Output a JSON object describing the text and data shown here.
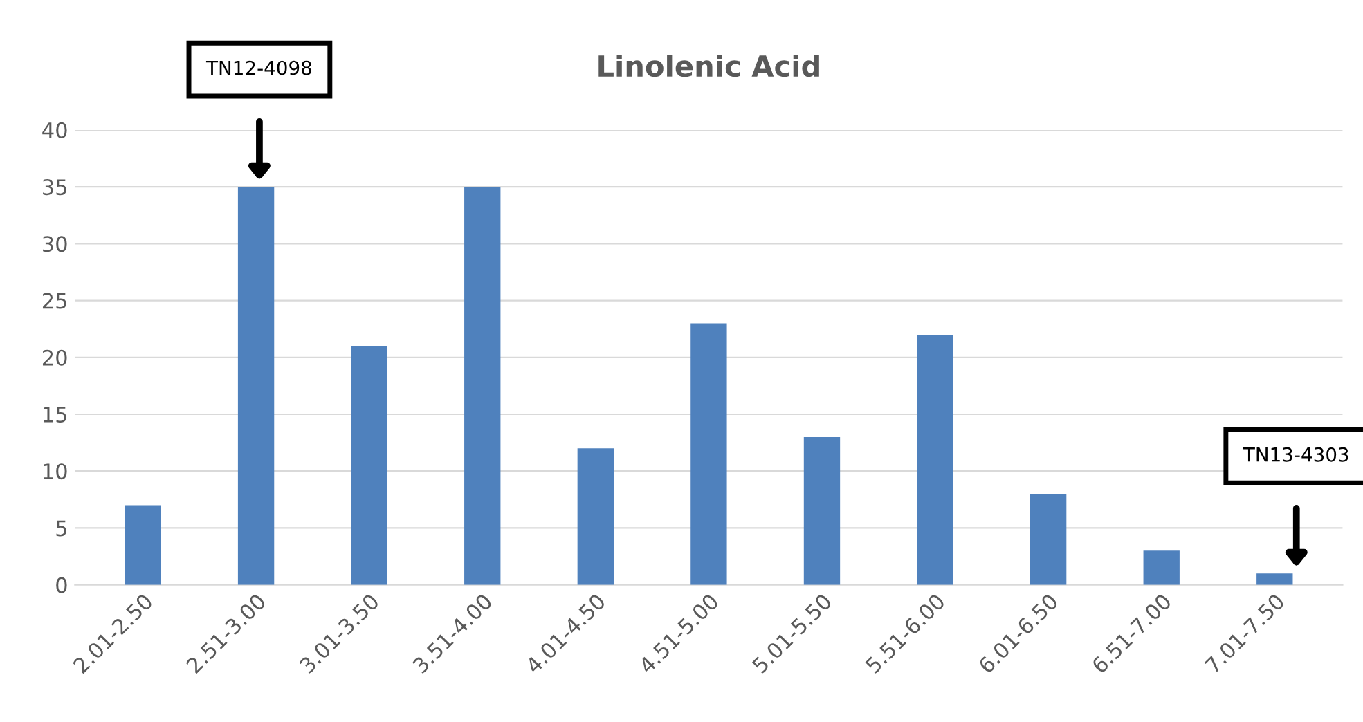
{
  "chart_data": {
    "type": "bar",
    "title": "Linolenic Acid",
    "categories": [
      "2.01-2.50",
      "2.51-3.00",
      "3.01-3.50",
      "3.51-4.00",
      "4.01-4.50",
      "4.51-5.00",
      "5.01-5.50",
      "5.51-6.00",
      "6.01-6.50",
      "6.51-7.00",
      "7.01-7.50"
    ],
    "values": [
      7,
      35,
      21,
      35,
      12,
      23,
      13,
      22,
      8,
      3,
      1
    ],
    "color": "#4f81bd",
    "ylim": [
      0,
      40
    ],
    "yticks": [
      0,
      5,
      10,
      15,
      20,
      25,
      30,
      35,
      40
    ],
    "grid": "y",
    "annotations": [
      "TN12-4098",
      "TN13-4303"
    ]
  }
}
